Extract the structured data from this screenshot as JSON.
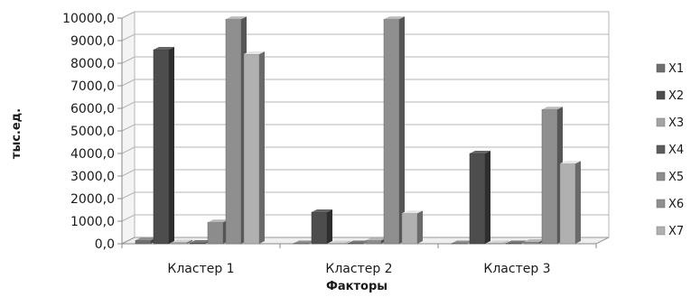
{
  "chart_data": {
    "type": "bar",
    "title": "",
    "xlabel": "Факторы",
    "ylabel": "тыс.ед.",
    "ylim": [
      0,
      10000
    ],
    "yticks": [
      "0,0",
      "1000,0",
      "2000,0",
      "3000,0",
      "4000,0",
      "5000,0",
      "6000,0",
      "7000,0",
      "8000,0",
      "9000,0",
      "10000,0"
    ],
    "categories": [
      "Кластер 1",
      "Кластер 2",
      "Кластер 3"
    ],
    "grid": true,
    "legend_position": "right",
    "series": [
      {
        "name": "X1",
        "color": "#6e6e6e",
        "values": [
          150,
          20,
          20
        ]
      },
      {
        "name": "X2",
        "color": "#4d4d4d",
        "values": [
          8600,
          1400,
          4000
        ]
      },
      {
        "name": "X3",
        "color": "#a3a3a3",
        "values": [
          60,
          20,
          20
        ]
      },
      {
        "name": "X4",
        "color": "#5c5c5c",
        "values": [
          40,
          20,
          20
        ]
      },
      {
        "name": "X5",
        "color": "#8c8c8c",
        "values": [
          950,
          150,
          80
        ]
      },
      {
        "name": "X6",
        "color": "#8f8f8f",
        "values": [
          9950,
          9950,
          5950
        ]
      },
      {
        "name": "X7",
        "color": "#b0b0b0",
        "values": [
          8400,
          1350,
          3550
        ]
      }
    ]
  }
}
